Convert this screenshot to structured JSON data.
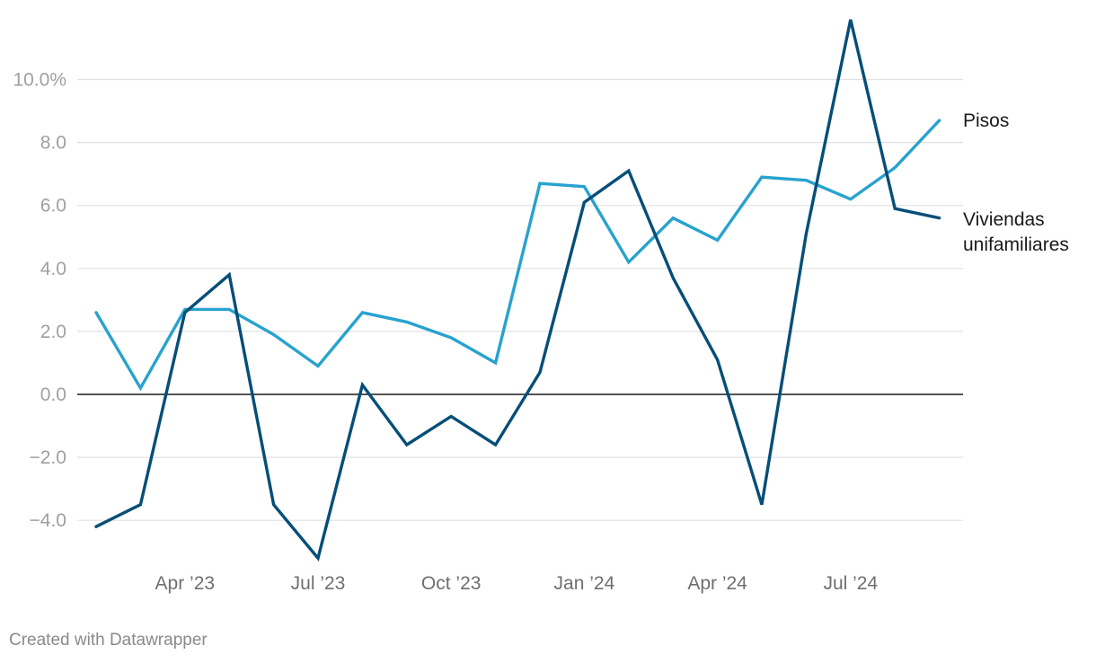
{
  "chart_data": {
    "type": "line",
    "x": [
      "Feb 2023",
      "Mar 2023",
      "Apr 2023",
      "May 2023",
      "Jun 2023",
      "Jul 2023",
      "Aug 2023",
      "Sep 2023",
      "Oct 2023",
      "Nov 2023",
      "Dec 2023",
      "Jan 2024",
      "Feb 2024",
      "Mar 2024",
      "Apr 2024",
      "May 2024",
      "Jun 2024",
      "Jul 2024",
      "Aug 2024",
      "Sep 2024"
    ],
    "x_tick_labels": [
      "Apr ’23",
      "Jul ’23",
      "Oct ’23",
      "Jan ’24",
      "Apr ’24",
      "Jul ’24"
    ],
    "y_tick_labels": [
      "10.0%",
      "8.0",
      "6.0",
      "4.0",
      "2.0",
      "0.0",
      "−2.0",
      "−4.0"
    ],
    "y_ticks": [
      10,
      8,
      6,
      4,
      2,
      0,
      -2,
      -4
    ],
    "ylim": [
      -5.4,
      12.1
    ],
    "grid": true,
    "legend": "direct labels at line ends",
    "series": [
      {
        "name": "Pisos",
        "color": "#28a2cf",
        "values": [
          2.6,
          0.2,
          2.7,
          2.7,
          1.9,
          0.9,
          2.6,
          2.3,
          1.8,
          1.0,
          6.7,
          6.6,
          4.2,
          5.6,
          4.9,
          6.9,
          6.8,
          6.2,
          7.2,
          8.7
        ]
      },
      {
        "name": "Viviendas unifamiliares",
        "label_lines": [
          "Viviendas",
          "unifamiliares"
        ],
        "color": "#064e78",
        "values": [
          -4.2,
          -3.5,
          2.6,
          3.8,
          -3.5,
          -5.2,
          0.3,
          -1.6,
          -0.7,
          -1.6,
          0.7,
          6.1,
          7.1,
          3.7,
          1.1,
          -3.5,
          5.1,
          11.9,
          5.9,
          5.6
        ]
      }
    ]
  },
  "footer": {
    "credit": "Created with Datawrapper"
  }
}
